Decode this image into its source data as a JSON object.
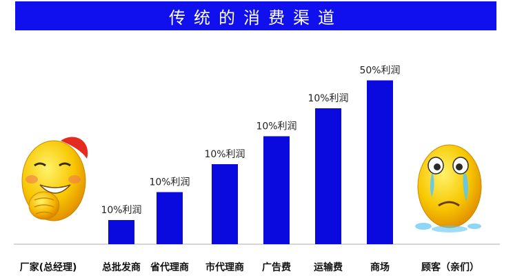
{
  "chart_data": {
    "type": "bar",
    "title": "传统的消费渠道",
    "categories": [
      "厂家(总经理)",
      "总批发商",
      "省代理商",
      "市代理商",
      "广告费",
      "运输费",
      "商场",
      "顾客（亲们）"
    ],
    "values": [
      null,
      1,
      2,
      3,
      4,
      5,
      6,
      null
    ],
    "data_labels": [
      "",
      "10%利润",
      "10%利润",
      "10%利润",
      "10%利润",
      "10%利润",
      "50%利润",
      ""
    ],
    "colors": {
      "bar": "#0a0adf",
      "title_bg": "#1010ee"
    },
    "grid": false,
    "legend": "none"
  },
  "icons": {
    "left": "happy-smiley-icon",
    "right": "crying-smiley-icon"
  }
}
